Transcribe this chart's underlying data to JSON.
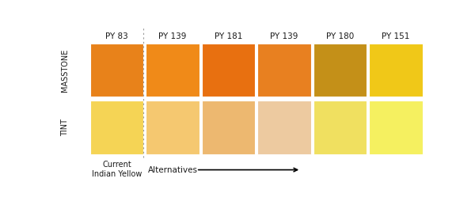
{
  "labels": [
    "PY 83",
    "PY 139",
    "PY 181",
    "PY 139",
    "PY 180",
    "PY 151"
  ],
  "masstone_colors": [
    "#E8821A",
    "#F08A18",
    "#E87010",
    "#E88020",
    "#C49018",
    "#F0C818"
  ],
  "tint_colors": [
    "#F5D455",
    "#F5C870",
    "#EDB870",
    "#EDCAA0",
    "#F0E060",
    "#F5F060"
  ],
  "background": "#FFFFFF",
  "row_labels": [
    "MASSTONE",
    "TINT"
  ],
  "bottom_left_label_line1": "Current",
  "bottom_left_label_line2": "Indian Yellow",
  "bottom_arrow_label": "Alternatives"
}
